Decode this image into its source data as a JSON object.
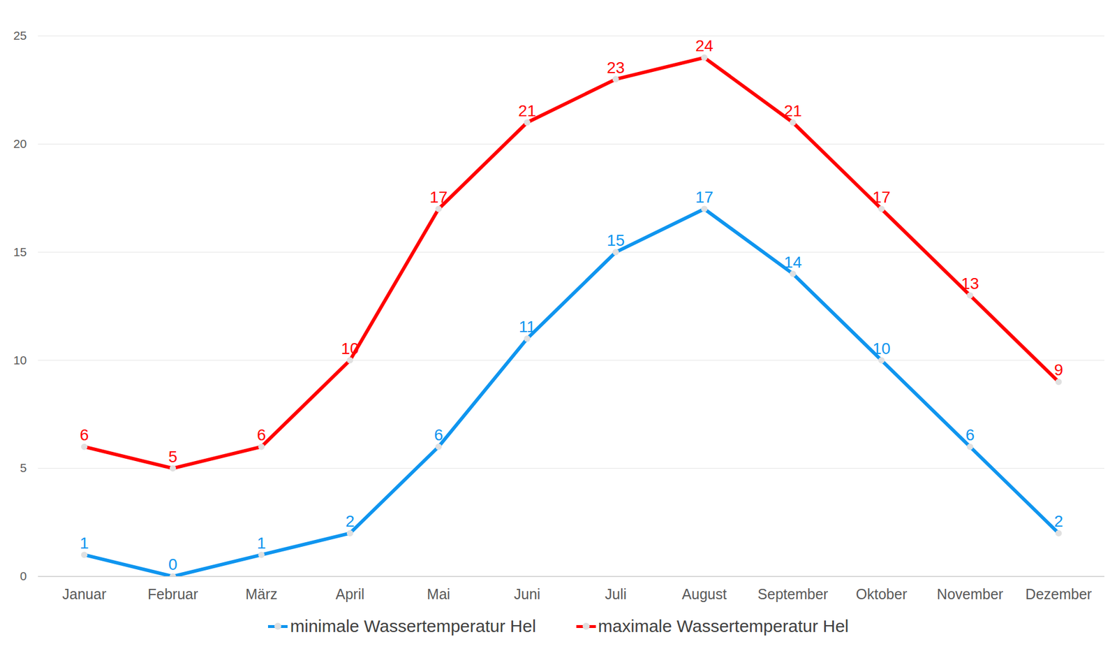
{
  "chart_data": {
    "type": "line",
    "categories": [
      "Januar",
      "Februar",
      "März",
      "April",
      "Mai",
      "Juni",
      "Juli",
      "August",
      "September",
      "Oktober",
      "November",
      "Dezember"
    ],
    "series": [
      {
        "name": "minimale Wassertemperatur Hel",
        "color": "#0f95ef",
        "values": [
          1,
          0,
          1,
          2,
          6,
          11,
          15,
          17,
          14,
          10,
          6,
          2
        ]
      },
      {
        "name": "maximale Wassertemperatur Hel",
        "color": "#ff0000",
        "values": [
          6,
          5,
          6,
          10,
          17,
          21,
          23,
          24,
          21,
          17,
          13,
          9
        ]
      }
    ],
    "ylim": [
      0,
      25
    ],
    "yticks": [
      0,
      5,
      10,
      15,
      20,
      25
    ],
    "grid": true,
    "legend": "bottom",
    "data_labels": true,
    "marker": "circle"
  }
}
